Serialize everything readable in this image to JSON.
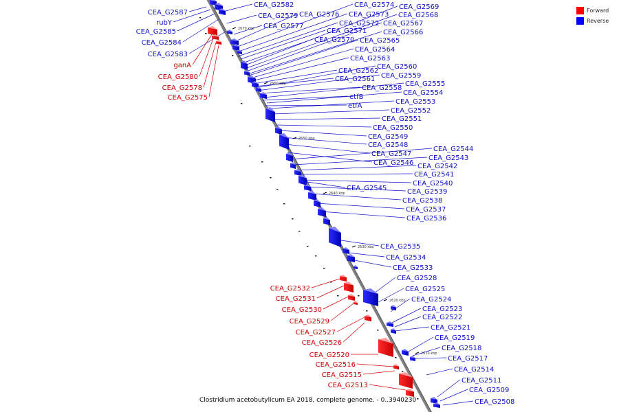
{
  "legend": {
    "forward_label": "Forward",
    "forward_color": "#ff0000",
    "reverse_label": "Reverse",
    "reverse_color": "#0000ff"
  },
  "caption": "Clostridium acetobutylicum EA 2018, complete genome. - 0..3940230",
  "scale_labels": [
    "2670 kbp",
    "2660 kbp",
    "2650 kbp",
    "2640 kbp",
    "2630 kbp",
    "2620 kbp",
    "2610 kbp"
  ],
  "forward_genes": [
    "CEA_G2580",
    "CEA_G2578",
    "CEA_G2575",
    "ganA",
    "CEA_G2532",
    "CEA_G2531",
    "CEA_G2530",
    "CEA_G2529",
    "CEA_G2527",
    "CEA_G2526",
    "CEA_G2520",
    "CEA_G2516",
    "CEA_G2515",
    "CEA_G2513"
  ],
  "reverse_genes": [
    "CEA_G2587",
    "rubY",
    "CEA_G2585",
    "CEA_G2584",
    "CEA_G2583",
    "CEA_G2582",
    "CEA_G2579",
    "CEA_G2577",
    "CEA_G2576",
    "CEA_G2574",
    "CEA_G2573",
    "CEA_G2572",
    "CEA_G2571",
    "CEA_G2570",
    "CEA_G2569",
    "CEA_G2568",
    "CEA_G2567",
    "CEA_G2566",
    "CEA_G2565",
    "CEA_G2564",
    "CEA_G2563",
    "CEA_G2562",
    "CEA_G2561",
    "CEA_G2560",
    "CEA_G2559",
    "CEA_G2558",
    "etfB",
    "etfA",
    "CEA_G2555",
    "CEA_G2554",
    "CEA_G2553",
    "CEA_G2552",
    "CEA_G2551",
    "CEA_G2550",
    "CEA_G2549",
    "CEA_G2548",
    "CEA_G2547",
    "CEA_G2546",
    "CEA_G2545",
    "CEA_G2544",
    "CEA_G2543",
    "CEA_G2542",
    "CEA_G2541",
    "CEA_G2540",
    "CEA_G2539",
    "CEA_G2538",
    "CEA_G2537",
    "CEA_G2536",
    "CEA_G2535",
    "CEA_G2534",
    "CEA_G2533",
    "CEA_G2528",
    "CEA_G2525",
    "CEA_G2524",
    "CEA_G2523",
    "CEA_G2522",
    "CEA_G2521",
    "CEA_G2519",
    "CEA_G2518",
    "CEA_G2517",
    "CEA_G2514",
    "CEA_G2511",
    "CEA_G2509",
    "CEA_G2508"
  ]
}
